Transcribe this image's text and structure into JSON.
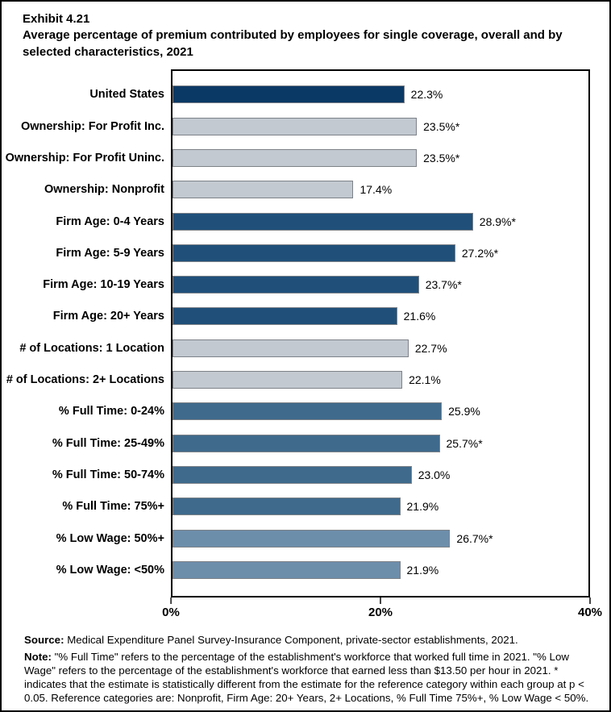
{
  "page": {
    "exhibit_label": "Exhibit 4.21",
    "title": "Average percentage of premium contributed by employees for single coverage, overall and by selected characteristics, 2021"
  },
  "chart_data": {
    "type": "bar",
    "orientation": "horizontal",
    "title": "Average percentage of premium contributed by employees for single coverage, overall and by selected characteristics, 2021",
    "xlabel": "",
    "ylabel": "",
    "xlim": [
      0,
      40
    ],
    "x_ticks": [
      "0%",
      "20%",
      "40%"
    ],
    "grid": false,
    "legend": "none",
    "categories": [
      "United States",
      "Ownership: For Profit Inc.",
      "Ownership: For Profit Uninc.",
      "Ownership: Nonprofit",
      "Firm Age: 0-4 Years",
      "Firm Age: 5-9 Years",
      "Firm Age: 10-19 Years",
      "Firm Age: 20+ Years",
      "# of Locations: 1 Location",
      "# of Locations: 2+ Locations",
      "% Full Time: 0-24%",
      "% Full Time: 25-49%",
      "% Full Time: 50-74%",
      "% Full Time: 75%+",
      "% Low Wage: 50%+",
      "% Low Wage: <50%"
    ],
    "values": [
      22.3,
      23.5,
      23.5,
      17.4,
      28.9,
      27.2,
      23.7,
      21.6,
      22.7,
      22.1,
      25.9,
      25.7,
      23.0,
      21.9,
      26.7,
      21.9
    ],
    "value_labels": [
      "22.3%",
      "23.5%*",
      "23.5%*",
      "17.4%",
      "28.9%*",
      "27.2%*",
      "23.7%*",
      "21.6%",
      "22.7%",
      "22.1%",
      "25.9%",
      "25.7%*",
      "23.0%",
      "21.9%",
      "26.7%*",
      "21.9%"
    ],
    "bar_groups": [
      "us",
      "ownership",
      "ownership",
      "ownership",
      "firm-age",
      "firm-age",
      "firm-age",
      "firm-age",
      "locations",
      "locations",
      "full-time",
      "full-time",
      "full-time",
      "full-time",
      "low-wage",
      "low-wage"
    ],
    "group_colors": {
      "us": "#0B3965",
      "ownership": "#C3C9D0",
      "firm-age": "#20507A",
      "locations": "#C3C9D0",
      "full-time": "#3F6A8C",
      "low-wage": "#6D8EAB"
    },
    "bar_border_color": "#7d8288"
  },
  "footer": {
    "source_label": "Source:",
    "source_text": " Medical Expenditure Panel Survey-Insurance Component, private-sector establishments, 2021.",
    "note_label": "Note:",
    "note_text": " \"% Full Time\" refers to the percentage of the establishment's workforce that worked full time in 2021. \"% Low Wage\" refers to the percentage of the establishment's workforce that earned less than $13.50 per hour in 2021. * indicates that the estimate is statistically different from the estimate for the reference category within each group at p < 0.05.  Reference categories are: Nonprofit, Firm Age: 20+ Years, 2+ Locations, % Full Time 75%+, % Low Wage < 50%."
  }
}
